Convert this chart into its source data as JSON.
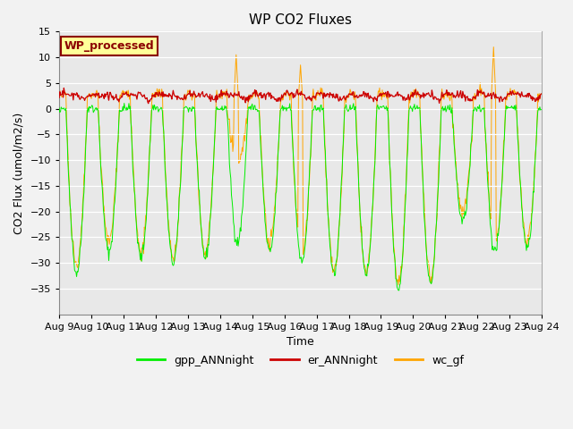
{
  "title": "WP CO2 Fluxes",
  "xlabel": "Time",
  "ylabel_plain": "CO2 Flux (umol/m2/s)",
  "ylim": [
    -40,
    15
  ],
  "yticks": [
    -35,
    -30,
    -25,
    -20,
    -15,
    -10,
    -5,
    0,
    5,
    10,
    15
  ],
  "xtick_labels": [
    "Aug 9",
    "Aug 10",
    "Aug 11",
    "Aug 12",
    "Aug 13",
    "Aug 14",
    "Aug 15",
    "Aug 16",
    "Aug 17",
    "Aug 18",
    "Aug 19",
    "Aug 20",
    "Aug 21",
    "Aug 22",
    "Aug 23",
    "Aug 24"
  ],
  "gpp_color": "#00EE00",
  "er_color": "#CC0000",
  "wc_color": "#FFA500",
  "plot_bg_color": "#E8E8E8",
  "fig_bg_color": "#F2F2F2",
  "grid_color": "#FFFFFF",
  "legend_labels": [
    "gpp_ANNnight",
    "er_ANNnight",
    "wc_gf"
  ],
  "text_box_label": "WP_processed",
  "text_box_facecolor": "#FFFF99",
  "text_box_edgecolor": "#8B0000",
  "text_box_textcolor": "#8B0000",
  "n_days": 15,
  "points_per_day": 48,
  "seed": 42,
  "day_amplitudes_gpp": [
    32,
    28,
    29,
    30,
    29,
    26,
    28,
    30,
    32,
    32,
    35,
    34,
    22,
    28,
    27
  ],
  "day_amplitudes_wc": [
    31,
    26,
    28,
    29,
    28,
    10,
    26,
    29,
    32,
    32,
    34,
    33,
    20,
    27,
    26
  ],
  "wc_spike_days": [
    5,
    7,
    13
  ],
  "wc_spike_values": [
    10.5,
    8.5,
    12.0
  ],
  "er_base": 2.5,
  "title_fontsize": 11,
  "label_fontsize": 9,
  "tick_fontsize": 8,
  "legend_fontsize": 9
}
